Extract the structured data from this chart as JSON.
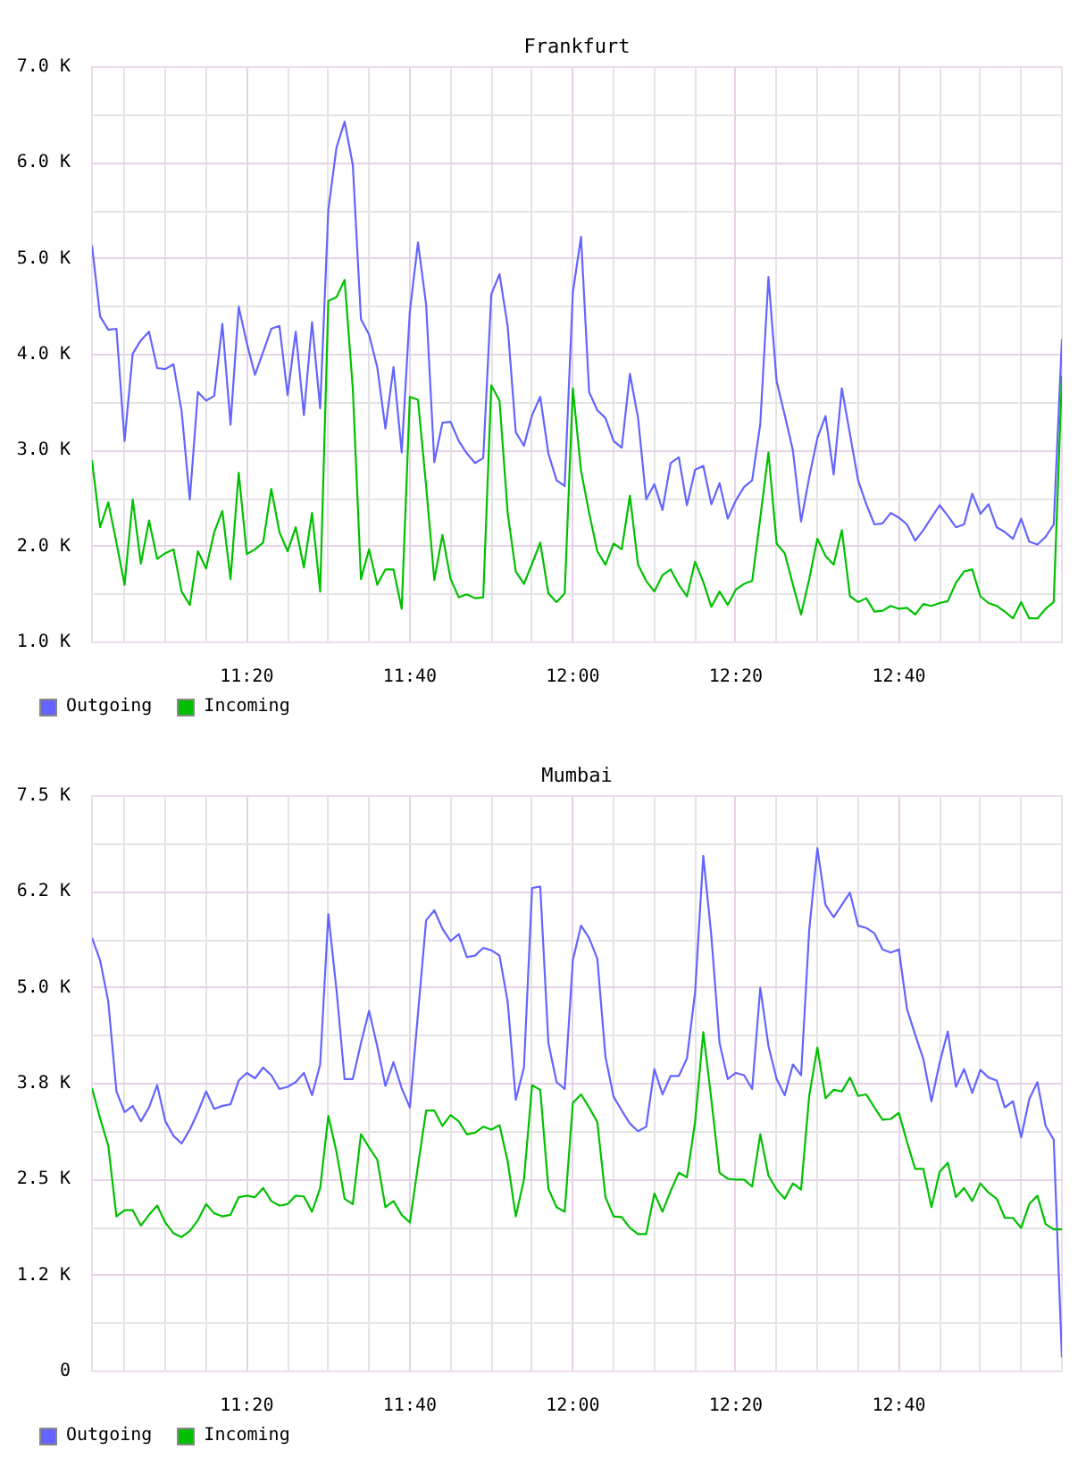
{
  "chart_data": [
    {
      "type": "line",
      "title": "Frankfurt",
      "x": [
        11.0167,
        11.0333,
        11.05,
        11.0667,
        11.0833,
        11.1,
        11.1167,
        11.1333,
        11.15,
        11.1667,
        11.1833,
        11.2,
        11.2167,
        11.2333,
        11.25,
        11.2667,
        11.2833,
        11.3,
        11.3167,
        11.3333,
        11.35,
        11.3667,
        11.3833,
        11.4,
        11.4167,
        11.4333,
        11.45,
        11.4667,
        11.4833,
        11.5,
        11.5167,
        11.5333,
        11.55,
        11.5667,
        11.5833,
        11.6,
        11.6167,
        11.6333,
        11.65,
        11.6667,
        11.6833,
        11.7,
        11.7167,
        11.7333,
        11.75,
        11.7667,
        11.7833,
        11.8,
        11.8167,
        11.8333,
        11.85,
        11.8667,
        11.8833,
        11.9,
        11.9167,
        11.9333,
        11.95,
        11.9667,
        11.9833,
        12.0,
        12.0167,
        12.0333,
        12.05,
        12.0667,
        12.0833,
        12.1,
        12.1167,
        12.1333,
        12.15,
        12.1667,
        12.1833,
        12.2,
        12.2167,
        12.2333,
        12.25,
        12.2667,
        12.2833,
        12.3,
        12.3167,
        12.3333,
        12.35,
        12.3667,
        12.3833,
        12.4,
        12.4167,
        12.4333,
        12.45,
        12.4667,
        12.4833,
        12.5,
        12.5167,
        12.5333,
        12.55,
        12.5667,
        12.5833,
        12.6,
        12.6167,
        12.6333,
        12.65,
        12.6667,
        12.6833,
        12.7,
        12.7167,
        12.7333,
        12.75,
        12.7667,
        12.7833,
        12.8,
        12.8167,
        12.8333,
        12.85,
        12.8667,
        12.8833,
        12.9,
        12.9167,
        12.9333,
        12.95,
        12.9667,
        12.9833,
        13.0
      ],
      "xlim": [
        11.0167,
        13.0
      ],
      "xticks": [
        {
          "value": 11.0833,
          "label": null
        },
        {
          "value": 11.1667,
          "label": null
        },
        {
          "value": 11.25,
          "label": null
        },
        {
          "value": 11.3333,
          "label": "11:20"
        },
        {
          "value": 11.4167,
          "label": null
        },
        {
          "value": 11.5,
          "label": null
        },
        {
          "value": 11.5833,
          "label": null
        },
        {
          "value": 11.6667,
          "label": "11:40"
        },
        {
          "value": 11.75,
          "label": null
        },
        {
          "value": 11.8333,
          "label": null
        },
        {
          "value": 11.9167,
          "label": null
        },
        {
          "value": 12.0,
          "label": "12:00"
        },
        {
          "value": 12.0833,
          "label": null
        },
        {
          "value": 12.1667,
          "label": null
        },
        {
          "value": 12.25,
          "label": null
        },
        {
          "value": 12.3333,
          "label": "12:20"
        },
        {
          "value": 12.4167,
          "label": null
        },
        {
          "value": 12.5,
          "label": null
        },
        {
          "value": 12.5833,
          "label": null
        },
        {
          "value": 12.6667,
          "label": "12:40"
        },
        {
          "value": 12.75,
          "label": null
        },
        {
          "value": 12.8333,
          "label": null
        },
        {
          "value": 12.9167,
          "label": null
        }
      ],
      "ylim": [
        1000,
        7000
      ],
      "yticks": [
        {
          "value": 1000,
          "label": "1.0 K"
        },
        {
          "value": 1500,
          "label": null
        },
        {
          "value": 2000,
          "label": "2.0 K"
        },
        {
          "value": 2500,
          "label": null
        },
        {
          "value": 3000,
          "label": "3.0 K"
        },
        {
          "value": 3500,
          "label": null
        },
        {
          "value": 4000,
          "label": "4.0 K"
        },
        {
          "value": 4500,
          "label": null
        },
        {
          "value": 5000,
          "label": "5.0 K"
        },
        {
          "value": 5500,
          "label": null
        },
        {
          "value": 6000,
          "label": "6.0 K"
        },
        {
          "value": 6500,
          "label": null
        },
        {
          "value": 7000,
          "label": "7.0 K"
        }
      ],
      "grid": true,
      "legend": "bottom left",
      "series": [
        {
          "name": "Outgoing",
          "color": "#6464ff",
          "values": [
            5140,
            4400,
            4260,
            4270,
            3100,
            4010,
            4150,
            4240,
            3860,
            3850,
            3900,
            3410,
            2490,
            3610,
            3520,
            3570,
            4320,
            3270,
            4500,
            4120,
            3790,
            4030,
            4270,
            4300,
            3580,
            4240,
            3370,
            4340,
            3440,
            5510,
            6160,
            6430,
            5980,
            4370,
            4210,
            3870,
            3230,
            3870,
            2980,
            4450,
            5170,
            4520,
            2880,
            3290,
            3300,
            3100,
            2970,
            2870,
            2920,
            4630,
            4840,
            4300,
            3190,
            3050,
            3370,
            3560,
            2970,
            2690,
            2630,
            4650,
            5230,
            3610,
            3420,
            3340,
            3100,
            3030,
            3800,
            3340,
            2490,
            2650,
            2380,
            2870,
            2930,
            2430,
            2800,
            2840,
            2440,
            2660,
            2290,
            2480,
            2620,
            2690,
            3280,
            4810,
            3720,
            3370,
            3000,
            2260,
            2720,
            3130,
            3360,
            2750,
            3650,
            3170,
            2690,
            2440,
            2230,
            2240,
            2350,
            2300,
            2230,
            2060,
            2170,
            2300,
            2430,
            2320,
            2200,
            2230,
            2550,
            2340,
            2440,
            2200,
            2150,
            2080,
            2290,
            2050,
            2020,
            2100,
            2230,
            4160
          ]
        },
        {
          "name": "Incoming",
          "color": "#00c000",
          "values": [
            2900,
            2200,
            2460,
            2040,
            1600,
            2490,
            1820,
            2270,
            1870,
            1930,
            1970,
            1530,
            1390,
            1950,
            1770,
            2150,
            2370,
            1660,
            2770,
            1920,
            1970,
            2040,
            2600,
            2150,
            1950,
            2200,
            1780,
            2350,
            1530,
            4560,
            4600,
            4780,
            3650,
            1660,
            1970,
            1600,
            1760,
            1760,
            1350,
            3560,
            3530,
            2630,
            1650,
            2120,
            1660,
            1470,
            1500,
            1460,
            1470,
            3680,
            3520,
            2350,
            1740,
            1610,
            1820,
            2040,
            1510,
            1420,
            1510,
            3650,
            2790,
            2350,
            1950,
            1810,
            2030,
            1970,
            2530,
            1810,
            1640,
            1530,
            1700,
            1760,
            1600,
            1480,
            1840,
            1630,
            1370,
            1530,
            1390,
            1550,
            1610,
            1640,
            2300,
            2980,
            2030,
            1930,
            1600,
            1290,
            1660,
            2080,
            1900,
            1810,
            2170,
            1480,
            1420,
            1460,
            1320,
            1330,
            1380,
            1350,
            1360,
            1290,
            1400,
            1380,
            1410,
            1430,
            1620,
            1740,
            1760,
            1480,
            1410,
            1380,
            1320,
            1250,
            1420,
            1250,
            1250,
            1350,
            1420,
            3780
          ]
        }
      ]
    },
    {
      "type": "line",
      "title": "Mumbai",
      "x": [
        11.0167,
        11.0333,
        11.05,
        11.0667,
        11.0833,
        11.1,
        11.1167,
        11.1333,
        11.15,
        11.1667,
        11.1833,
        11.2,
        11.2167,
        11.2333,
        11.25,
        11.2667,
        11.2833,
        11.3,
        11.3167,
        11.3333,
        11.35,
        11.3667,
        11.3833,
        11.4,
        11.4167,
        11.4333,
        11.45,
        11.4667,
        11.4833,
        11.5,
        11.5167,
        11.5333,
        11.55,
        11.5667,
        11.5833,
        11.6,
        11.6167,
        11.6333,
        11.65,
        11.6667,
        11.6833,
        11.7,
        11.7167,
        11.7333,
        11.75,
        11.7667,
        11.7833,
        11.8,
        11.8167,
        11.8333,
        11.85,
        11.8667,
        11.8833,
        11.9,
        11.9167,
        11.9333,
        11.95,
        11.9667,
        11.9833,
        12.0,
        12.0167,
        12.0333,
        12.05,
        12.0667,
        12.0833,
        12.1,
        12.1167,
        12.1333,
        12.15,
        12.1667,
        12.1833,
        12.2,
        12.2167,
        12.2333,
        12.25,
        12.2667,
        12.2833,
        12.3,
        12.3167,
        12.3333,
        12.35,
        12.3667,
        12.3833,
        12.4,
        12.4167,
        12.4333,
        12.45,
        12.4667,
        12.4833,
        12.5,
        12.5167,
        12.5333,
        12.55,
        12.5667,
        12.5833,
        12.6,
        12.6167,
        12.6333,
        12.65,
        12.6667,
        12.6833,
        12.7,
        12.7167,
        12.7333,
        12.75,
        12.7667,
        12.7833,
        12.8,
        12.8167,
        12.8333,
        12.85,
        12.8667,
        12.8833,
        12.9,
        12.9167,
        12.9333,
        12.95,
        12.9667,
        12.9833,
        13.0
      ],
      "xlim": [
        11.0167,
        13.0
      ],
      "xticks": [
        {
          "value": 11.0833,
          "label": null
        },
        {
          "value": 11.1667,
          "label": null
        },
        {
          "value": 11.25,
          "label": null
        },
        {
          "value": 11.3333,
          "label": "11:20"
        },
        {
          "value": 11.4167,
          "label": null
        },
        {
          "value": 11.5,
          "label": null
        },
        {
          "value": 11.5833,
          "label": null
        },
        {
          "value": 11.6667,
          "label": "11:40"
        },
        {
          "value": 11.75,
          "label": null
        },
        {
          "value": 11.8333,
          "label": null
        },
        {
          "value": 11.9167,
          "label": null
        },
        {
          "value": 12.0,
          "label": "12:00"
        },
        {
          "value": 12.0833,
          "label": null
        },
        {
          "value": 12.1667,
          "label": null
        },
        {
          "value": 12.25,
          "label": null
        },
        {
          "value": 12.3333,
          "label": "12:20"
        },
        {
          "value": 12.4167,
          "label": null
        },
        {
          "value": 12.5,
          "label": null
        },
        {
          "value": 12.5833,
          "label": null
        },
        {
          "value": 12.6667,
          "label": "12:40"
        },
        {
          "value": 12.75,
          "label": null
        },
        {
          "value": 12.8333,
          "label": null
        },
        {
          "value": 12.9167,
          "label": null
        }
      ],
      "ylim": [
        0,
        7500
      ],
      "yticks": [
        0,
        {
          "value": 625,
          "label": null
        },
        {
          "value": 1250,
          "label": "1.2 K"
        },
        {
          "value": 1875,
          "label": null
        },
        {
          "value": 2500,
          "label": "2.5 K"
        },
        {
          "value": 3125,
          "label": null
        },
        {
          "value": 3750,
          "label": "3.8 K"
        },
        {
          "value": 4375,
          "label": null
        },
        {
          "value": 5000,
          "label": "5.0 K"
        },
        {
          "value": 5625,
          "label": null
        },
        {
          "value": 6250,
          "label": "6.2 K"
        },
        {
          "value": 6875,
          "label": null
        },
        {
          "value": 7500,
          "label": "7.5 K"
        }
      ],
      "grid": true,
      "legend": "bottom left",
      "series": [
        {
          "name": "Outgoing",
          "color": "#6464ff",
          "values": [
            5650,
            5360,
            4820,
            3650,
            3380,
            3460,
            3260,
            3440,
            3730,
            3260,
            3070,
            2970,
            3150,
            3380,
            3650,
            3420,
            3460,
            3480,
            3790,
            3890,
            3820,
            3960,
            3860,
            3680,
            3710,
            3770,
            3890,
            3600,
            4000,
            5960,
            4970,
            3810,
            3810,
            4280,
            4700,
            4240,
            3720,
            4030,
            3690,
            3440,
            4660,
            5880,
            6010,
            5770,
            5610,
            5700,
            5400,
            5420,
            5520,
            5490,
            5420,
            4820,
            3540,
            3960,
            6300,
            6320,
            4280,
            3770,
            3680,
            5360,
            5810,
            5650,
            5380,
            4100,
            3580,
            3400,
            3230,
            3130,
            3190,
            3940,
            3610,
            3850,
            3850,
            4080,
            4940,
            6720,
            5670,
            4280,
            3810,
            3890,
            3860,
            3680,
            5000,
            4240,
            3810,
            3600,
            4000,
            3860,
            5750,
            6820,
            6080,
            5920,
            6080,
            6240,
            5810,
            5780,
            5710,
            5500,
            5460,
            5500,
            4720,
            4390,
            4070,
            3520,
            4020,
            4430,
            3710,
            3940,
            3630,
            3930,
            3830,
            3790,
            3440,
            3520,
            3050,
            3550,
            3770,
            3200,
            3020,
            180
          ]
        },
        {
          "name": "Incoming",
          "color": "#00c000",
          "values": [
            3690,
            3300,
            2940,
            2020,
            2100,
            2100,
            1900,
            2040,
            2160,
            1940,
            1800,
            1750,
            1830,
            1970,
            2180,
            2060,
            2020,
            2040,
            2270,
            2290,
            2270,
            2390,
            2220,
            2160,
            2180,
            2290,
            2280,
            2080,
            2390,
            3330,
            2860,
            2250,
            2180,
            3090,
            2920,
            2760,
            2140,
            2220,
            2040,
            1940,
            2680,
            3400,
            3400,
            3200,
            3340,
            3260,
            3090,
            3110,
            3190,
            3150,
            3210,
            2740,
            2020,
            2500,
            3730,
            3670,
            2380,
            2140,
            2080,
            3500,
            3610,
            3440,
            3250,
            2270,
            2020,
            2010,
            1870,
            1790,
            1790,
            2320,
            2080,
            2350,
            2590,
            2530,
            3250,
            4420,
            3540,
            2590,
            2510,
            2500,
            2500,
            2410,
            3090,
            2550,
            2370,
            2250,
            2450,
            2370,
            3590,
            4220,
            3560,
            3670,
            3650,
            3830,
            3590,
            3610,
            3440,
            3280,
            3290,
            3370,
            2990,
            2640,
            2640,
            2140,
            2600,
            2720,
            2270,
            2390,
            2220,
            2450,
            2330,
            2250,
            2000,
            2000,
            1870,
            2180,
            2290,
            1920,
            1850,
            1850
          ]
        }
      ]
    }
  ]
}
